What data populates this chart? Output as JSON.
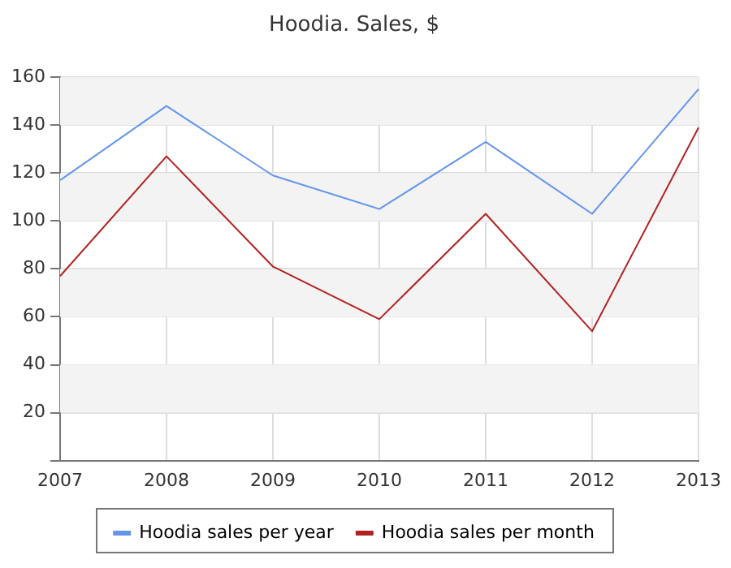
{
  "chart_data": {
    "type": "line",
    "title": "Hoodia. Sales, $",
    "categories": [
      "2007",
      "2008",
      "2009",
      "2010",
      "2011",
      "2012",
      "2013"
    ],
    "series": [
      {
        "name": "Hoodia sales per year",
        "color": "#6495ed",
        "values": [
          117,
          148,
          119,
          105,
          133,
          103,
          155
        ]
      },
      {
        "name": "Hoodia sales per month",
        "color": "#b22222",
        "values": [
          77,
          127,
          81,
          59,
          103,
          54,
          139
        ]
      }
    ],
    "ylim": [
      0,
      160
    ],
    "yticks": [
      {
        "value": 0,
        "label": null
      },
      20,
      40,
      60,
      80,
      100,
      120,
      140,
      160
    ],
    "grid": true,
    "legend": "bottom",
    "marker": "none",
    "line_style": "solid"
  }
}
